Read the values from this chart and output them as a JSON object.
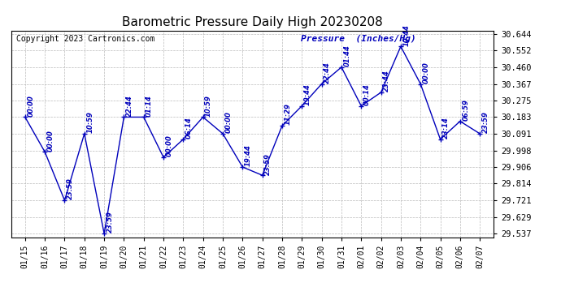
{
  "title": "Barometric Pressure Daily High 20230208",
  "copyright": "Copyright 2023 Cartronics.com",
  "ylabel": "Pressure  (Inches/Hg)",
  "line_color": "#0000bb",
  "marker_color": "#0000bb",
  "background_color": "#ffffff",
  "grid_color": "#bbbbbb",
  "ylim_min": 29.537,
  "ylim_max": 30.644,
  "yticks": [
    29.537,
    29.629,
    29.721,
    29.814,
    29.906,
    29.998,
    30.091,
    30.183,
    30.275,
    30.367,
    30.46,
    30.552,
    30.644
  ],
  "dates": [
    "01/15",
    "01/16",
    "01/17",
    "01/18",
    "01/19",
    "01/20",
    "01/21",
    "01/22",
    "01/23",
    "01/24",
    "01/25",
    "01/26",
    "01/27",
    "01/28",
    "01/29",
    "01/30",
    "01/31",
    "02/01",
    "02/02",
    "02/03",
    "02/04",
    "02/05",
    "02/06",
    "02/07"
  ],
  "values": [
    30.183,
    29.99,
    29.721,
    30.091,
    29.537,
    30.183,
    30.183,
    29.96,
    30.06,
    30.183,
    30.091,
    29.906,
    29.86,
    30.135,
    30.245,
    30.367,
    30.46,
    30.245,
    30.32,
    30.575,
    30.367,
    30.06,
    30.16,
    30.091
  ],
  "annotations": [
    "00:00",
    "00:00",
    "23:59",
    "10:59",
    "23:59",
    "22:44",
    "01:14",
    "00:00",
    "06:14",
    "10:59",
    "00:00",
    "19:44",
    "23:59",
    "11:29",
    "19:44",
    "22:44",
    "01:44",
    "00:14",
    "23:44",
    "10:44",
    "00:00",
    "23:14",
    "06:59",
    "23:59"
  ]
}
